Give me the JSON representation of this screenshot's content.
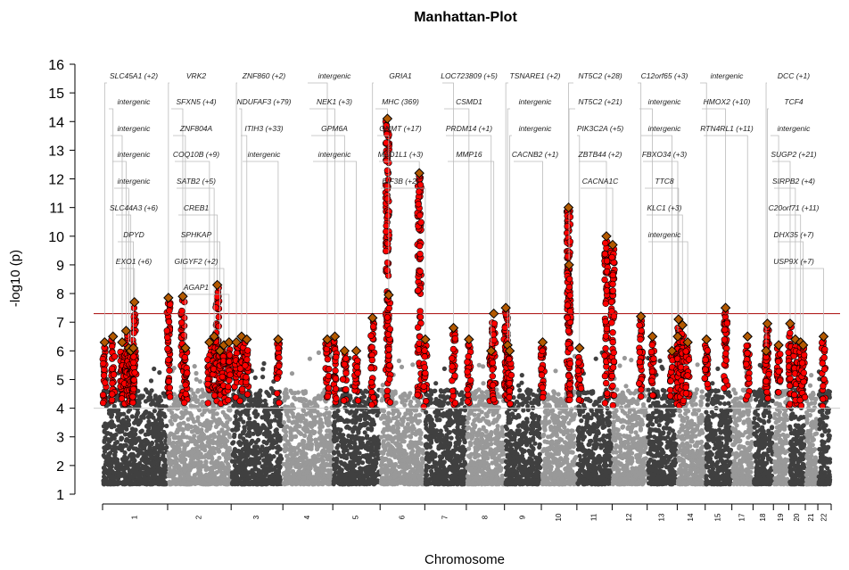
{
  "chart_data": {
    "type": "scatter",
    "title": "Manhattan-Plot",
    "xlabel": "Chromosome",
    "ylabel": "-log10 (p)",
    "ylim": [
      1,
      16
    ],
    "yticks": [
      1,
      2,
      3,
      4,
      5,
      6,
      7,
      8,
      9,
      10,
      11,
      12,
      13,
      14,
      15,
      16
    ],
    "significance_threshold": 7.3,
    "suggestive_threshold": 4,
    "colors": {
      "dark": "#404040",
      "light": "#999999",
      "highlight": "#ff0000",
      "lead": "#b35900",
      "threshold": "#b22222",
      "suggestive": "#cccccc",
      "leader": "#bbbbbb"
    },
    "chromosomes": [
      {
        "label": "1",
        "size": 249
      },
      {
        "label": "2",
        "size": 243
      },
      {
        "label": "3",
        "size": 198
      },
      {
        "label": "4",
        "size": 191
      },
      {
        "label": "5",
        "size": 181
      },
      {
        "label": "6",
        "size": 171
      },
      {
        "label": "7",
        "size": 159
      },
      {
        "label": "8",
        "size": 146
      },
      {
        "label": "9",
        "size": 141
      },
      {
        "label": "10",
        "size": 136
      },
      {
        "label": "11",
        "size": 135
      },
      {
        "label": "12",
        "size": 134
      },
      {
        "label": "13",
        "size": 115
      },
      {
        "label": "14",
        "size": 107
      },
      {
        "label": "15",
        "size": 102
      },
      {
        "label": "17",
        "size": 81
      },
      {
        "label": "18",
        "size": 78
      },
      {
        "label": "19",
        "size": 59
      },
      {
        "label": "20",
        "size": 63
      },
      {
        "label": "21",
        "size": 48
      },
      {
        "label": "22",
        "size": 51
      }
    ],
    "loci": [
      {
        "chr": "1",
        "pos": 8,
        "y": 6.3,
        "gene": "SLC45A1 (+2)"
      },
      {
        "chr": "1",
        "pos": 40,
        "y": 6.5,
        "gene": "intergenic"
      },
      {
        "chr": "1",
        "pos": 75,
        "y": 6.3,
        "gene": "intergenic"
      },
      {
        "chr": "1",
        "pos": 90,
        "y": 6.7,
        "gene": "intergenic"
      },
      {
        "chr": "1",
        "pos": 100,
        "y": 6.1,
        "gene": "intergenic"
      },
      {
        "chr": "1",
        "pos": 108,
        "y": 6.0,
        "gene": "SLC44A3 (+6)"
      },
      {
        "chr": "1",
        "pos": 118,
        "y": 6.1,
        "gene": "DPYD"
      },
      {
        "chr": "1",
        "pos": 122,
        "y": 7.7,
        "gene": "EXO1 (+6)"
      },
      {
        "chr": "2",
        "pos": 3,
        "y": 7.85,
        "gene": "VRK2"
      },
      {
        "chr": "2",
        "pos": 58,
        "y": 7.9,
        "gene": "SFXN5 (+4)"
      },
      {
        "chr": "2",
        "pos": 68,
        "y": 6.1,
        "gene": "ZNF804A"
      },
      {
        "chr": "2",
        "pos": 160,
        "y": 6.3,
        "gene": "COQ10B (+9)"
      },
      {
        "chr": "2",
        "pos": 178,
        "y": 6.5,
        "gene": "SATB2 (+5)"
      },
      {
        "chr": "2",
        "pos": 190,
        "y": 8.3,
        "gene": "CREB1"
      },
      {
        "chr": "2",
        "pos": 200,
        "y": 6.0,
        "gene": "SPHKAP"
      },
      {
        "chr": "2",
        "pos": 215,
        "y": 6.2,
        "gene": "GIGYF2 (+2)"
      },
      {
        "chr": "2",
        "pos": 235,
        "y": 6.3,
        "gene": "AGAP1"
      },
      {
        "chr": "3",
        "pos": 20,
        "y": 6.3,
        "gene": "ZNF860 (+2)"
      },
      {
        "chr": "3",
        "pos": 40,
        "y": 6.5,
        "gene": "NDUFAF3 (+79)"
      },
      {
        "chr": "3",
        "pos": 60,
        "y": 6.4,
        "gene": "ITIH3 (+33)"
      },
      {
        "chr": "3",
        "pos": 180,
        "y": 6.4,
        "gene": "intergenic"
      },
      {
        "chr": "4",
        "pos": 170,
        "y": 6.4,
        "gene": "intergenic"
      },
      {
        "chr": "5",
        "pos": 8,
        "y": 6.5,
        "gene": "NEK1 (+3)"
      },
      {
        "chr": "5",
        "pos": 45,
        "y": 6.0,
        "gene": "GPM6A"
      },
      {
        "chr": "5",
        "pos": 90,
        "y": 6.0,
        "gene": "intergenic"
      },
      {
        "chr": "5",
        "pos": 152,
        "y": 7.15,
        "gene": "GRIA1"
      },
      {
        "chr": "6",
        "pos": 28,
        "y": 14.1,
        "gene": "MHC (369)"
      },
      {
        "chr": "6",
        "pos": 33,
        "y": 7.95,
        "gene": "GNMT (+17)"
      },
      {
        "chr": "6",
        "pos": 150,
        "y": 12.2,
        "gene": "MAD1L1 (+3)"
      },
      {
        "chr": "7",
        "pos": 2,
        "y": 6.4,
        "gene": "EIF3B (+2)"
      },
      {
        "chr": "7",
        "pos": 110,
        "y": 6.8,
        "gene": "LOC723809 (+5)"
      },
      {
        "chr": "8",
        "pos": 10,
        "y": 6.4,
        "gene": "CSMD1"
      },
      {
        "chr": "8",
        "pos": 95,
        "y": 6.0,
        "gene": "PRDM14 (+1)"
      },
      {
        "chr": "8",
        "pos": 105,
        "y": 7.3,
        "gene": "MMP16"
      },
      {
        "chr": "9",
        "pos": 5,
        "y": 7.5,
        "gene": "TSNARE1 (+2)"
      },
      {
        "chr": "9",
        "pos": 12,
        "y": 6.2,
        "gene": "intergenic"
      },
      {
        "chr": "9",
        "pos": 20,
        "y": 6.0,
        "gene": "intergenic"
      },
      {
        "chr": "10",
        "pos": 5,
        "y": 6.3,
        "gene": "CACNB2 (+1)"
      },
      {
        "chr": "10",
        "pos": 104,
        "y": 11.0,
        "gene": "NT5C2 (+28)"
      },
      {
        "chr": "10",
        "pos": 106,
        "y": 9.0,
        "gene": "NT5C2 (+21)"
      },
      {
        "chr": "11",
        "pos": 10,
        "y": 6.1,
        "gene": "PIK3C2A (+5)"
      },
      {
        "chr": "11",
        "pos": 113,
        "y": 10.0,
        "gene": "ZBTB44 (+2)"
      },
      {
        "chr": "12",
        "pos": 2,
        "y": 9.7,
        "gene": "CACNA1C"
      },
      {
        "chr": "12",
        "pos": 110,
        "y": 7.2,
        "gene": "C12orf65 (+3)"
      },
      {
        "chr": "13",
        "pos": 20,
        "y": 6.5,
        "gene": "intergenic"
      },
      {
        "chr": "13",
        "pos": 95,
        "y": 6.0,
        "gene": "intergenic"
      },
      {
        "chr": "14",
        "pos": 2,
        "y": 6.5,
        "gene": "FBXO34 (+3)"
      },
      {
        "chr": "14",
        "pos": 5,
        "y": 7.1,
        "gene": "TTC8"
      },
      {
        "chr": "14",
        "pos": 20,
        "y": 6.9,
        "gene": "KLC1 (+3)"
      },
      {
        "chr": "14",
        "pos": 40,
        "y": 6.3,
        "gene": "intergenic"
      },
      {
        "chr": "15",
        "pos": 5,
        "y": 6.4,
        "gene": "intergenic"
      },
      {
        "chr": "15",
        "pos": 78,
        "y": 7.5,
        "gene": "HMOX2 (+10)"
      },
      {
        "chr": "17",
        "pos": 60,
        "y": 6.5,
        "gene": "RTN4RL1 (+11)"
      },
      {
        "chr": "18",
        "pos": 50,
        "y": 6.0,
        "gene": "DCC (+1)"
      },
      {
        "chr": "18",
        "pos": 55,
        "y": 6.95,
        "gene": "TCF4"
      },
      {
        "chr": "19",
        "pos": 20,
        "y": 6.2,
        "gene": "intergenic"
      },
      {
        "chr": "20",
        "pos": 5,
        "y": 6.95,
        "gene": "SUGP2 (+21)"
      },
      {
        "chr": "20",
        "pos": 25,
        "y": 6.4,
        "gene": "SIRPB2 (+4)"
      },
      {
        "chr": "20",
        "pos": 45,
        "y": 6.3,
        "gene": "C20orf71 (+11)"
      },
      {
        "chr": "20",
        "pos": 55,
        "y": 6.2,
        "gene": "DHX35 (+7)"
      },
      {
        "chr": "22",
        "pos": 22,
        "y": 6.5,
        "gene": "USP9X (+7)"
      }
    ]
  }
}
